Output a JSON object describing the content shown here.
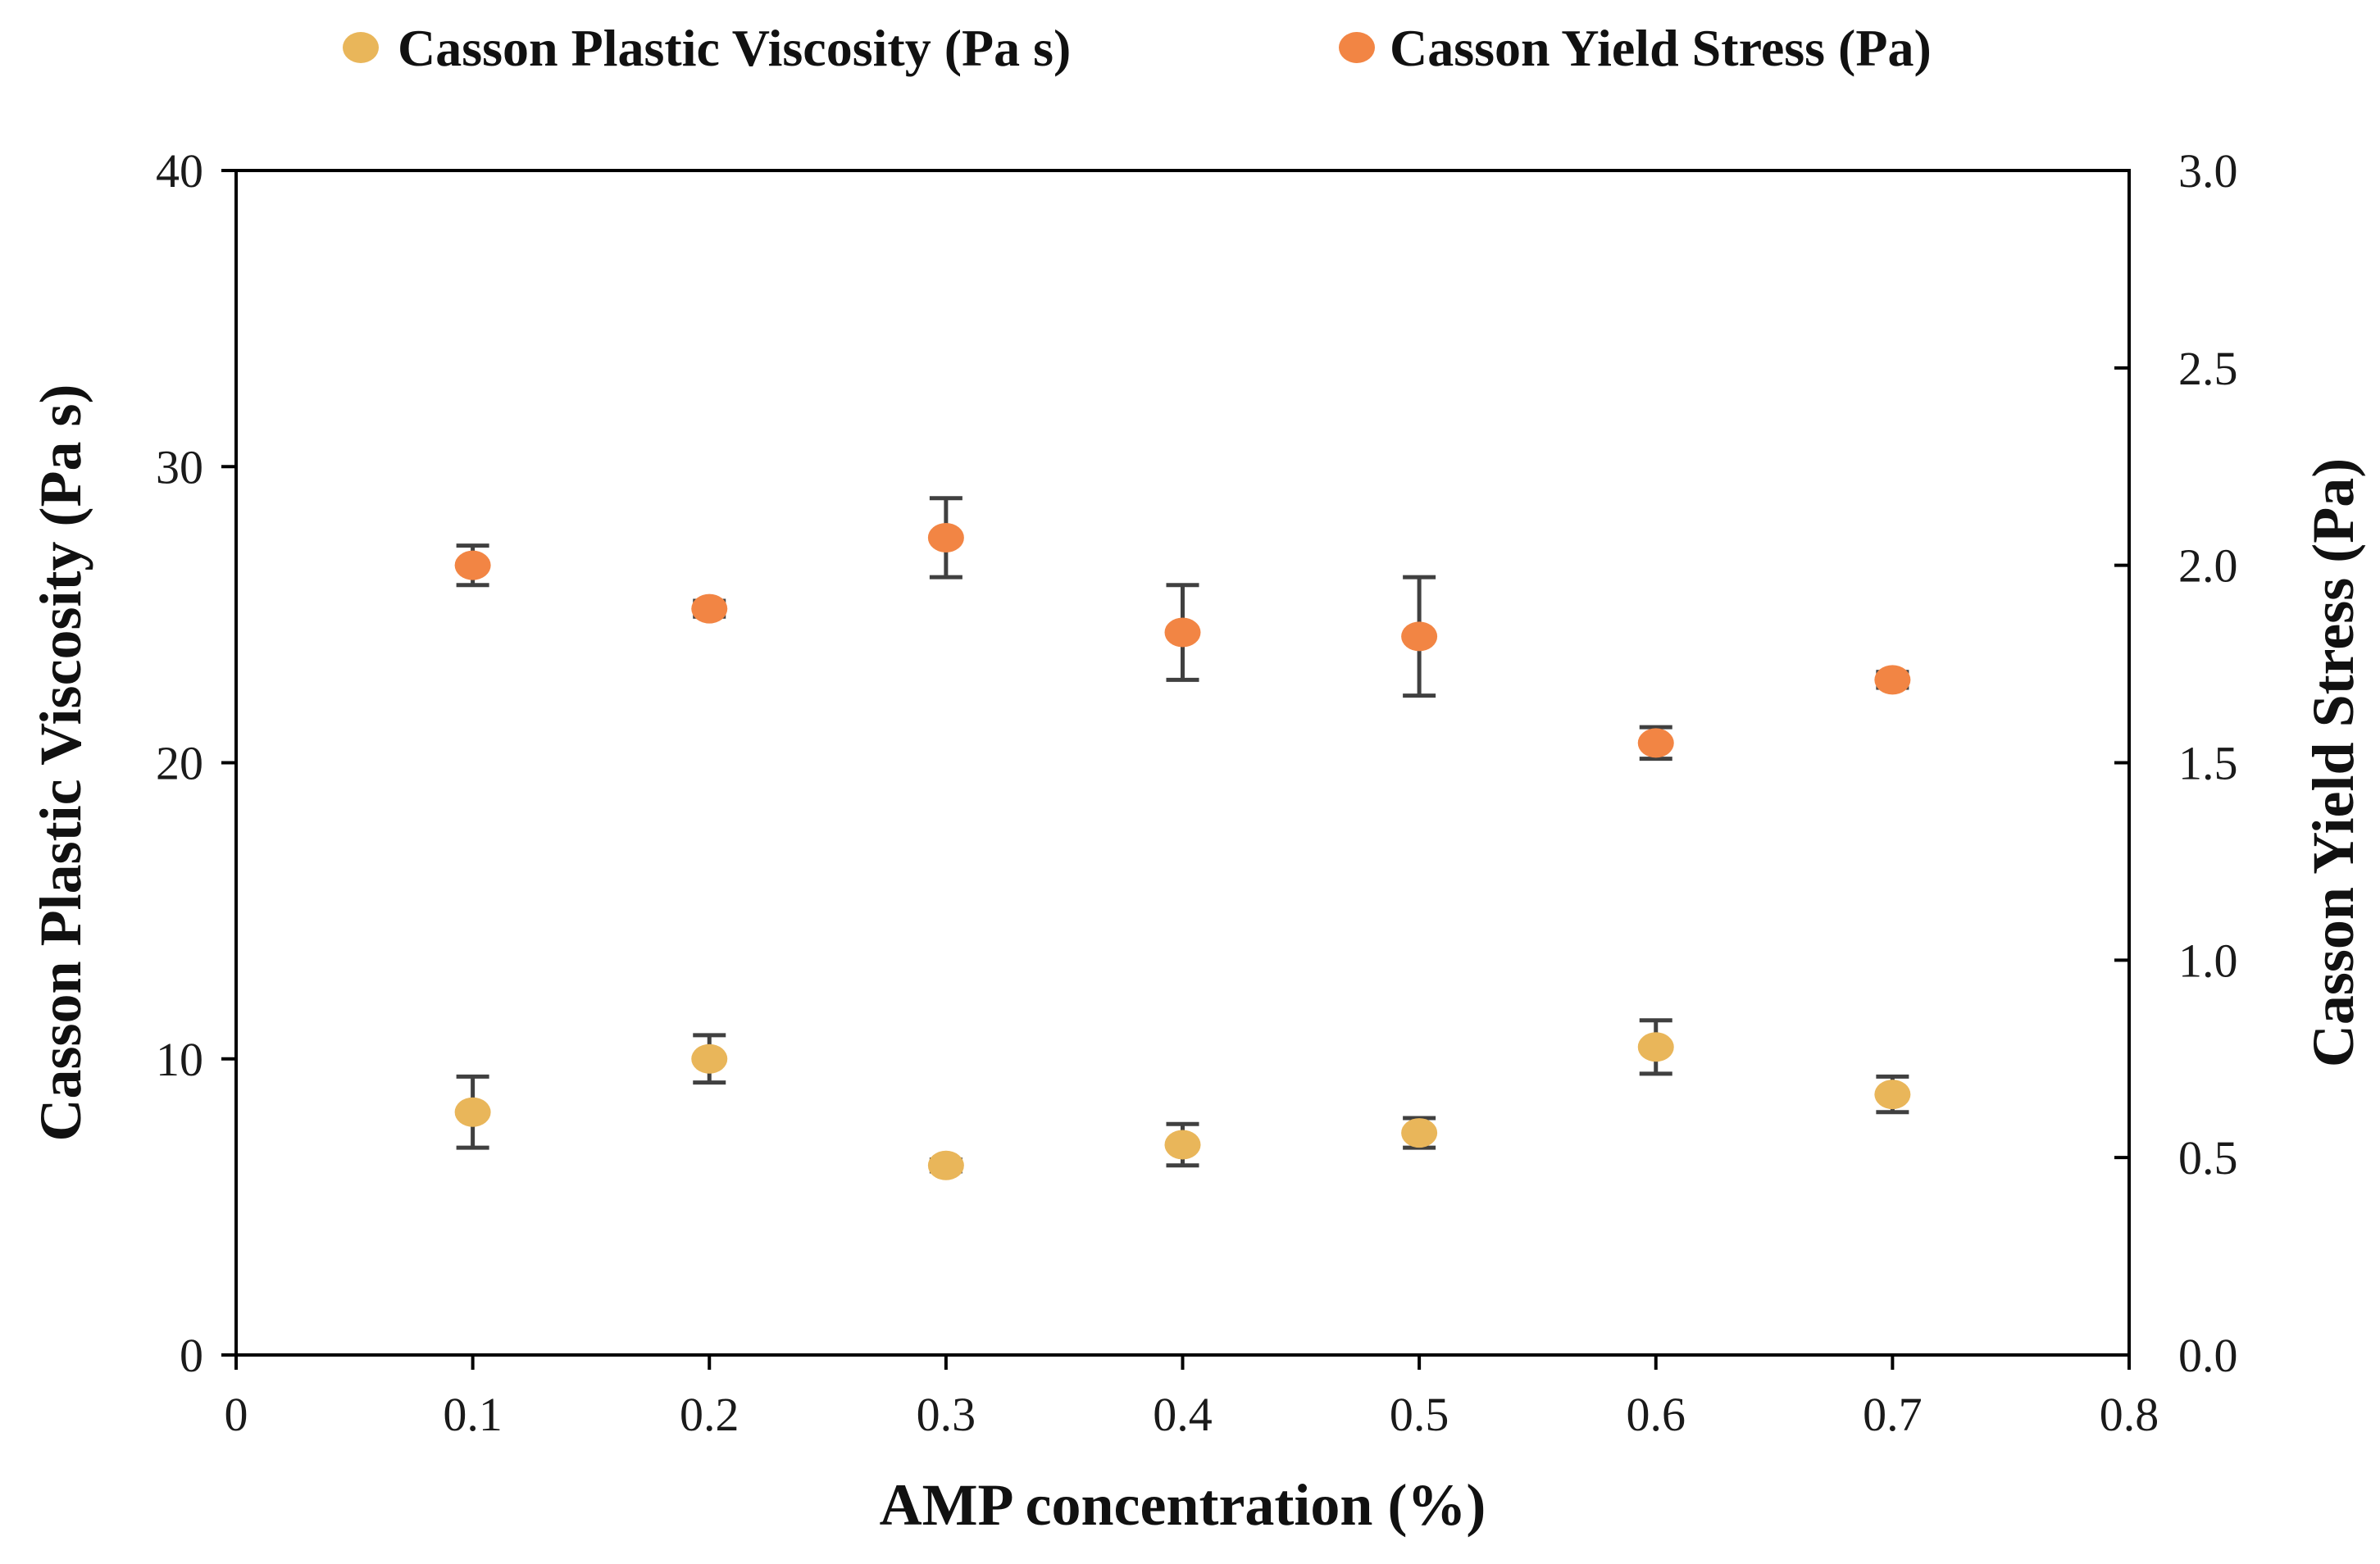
{
  "chart_data": {
    "type": "scatter",
    "grid": false,
    "legend_position": "top",
    "xlabel": "AMP concentration (%)",
    "ylabel": "Casson Plastic Viscosity (Pa s)",
    "y2label": "Casson Yield Stress (Pa)",
    "xlim": [
      0,
      0.8
    ],
    "ylim": [
      0,
      40
    ],
    "y2lim": [
      0,
      3.0
    ],
    "x_ticks": [
      0,
      0.1,
      0.2,
      0.3,
      0.4,
      0.5,
      0.6,
      0.7,
      0.8
    ],
    "x_tick_labels": [
      "0",
      "0.1",
      "0.2",
      "0.3",
      "0.4",
      "0.5",
      "0.6",
      "0.7",
      "0.8"
    ],
    "y_ticks": [
      0,
      10,
      20,
      30,
      40
    ],
    "y_tick_labels": [
      "0",
      "10",
      "20",
      "30",
      "40"
    ],
    "y2_ticks": [
      0,
      0.5,
      1.0,
      1.5,
      2.0,
      2.5,
      3.0
    ],
    "y2_tick_labels": [
      "0.0",
      "0.5",
      "1.0",
      "1.5",
      "2.0",
      "2.5",
      "3.0"
    ],
    "series": [
      {
        "name": "Casson Plastic Viscosity (Pa s)",
        "axis": "left",
        "color": "#E9B65A",
        "x": [
          0.1,
          0.2,
          0.3,
          0.4,
          0.5,
          0.6,
          0.7
        ],
        "y": [
          8.2,
          10.0,
          6.4,
          7.1,
          7.5,
          10.4,
          8.8
        ],
        "error": [
          1.2,
          0.8,
          0.2,
          0.7,
          0.5,
          0.9,
          0.6
        ]
      },
      {
        "name": "Casson Yield Stress (Pa)",
        "axis": "right",
        "color": "#F28544",
        "x": [
          0.1,
          0.2,
          0.3,
          0.4,
          0.5,
          0.6,
          0.7
        ],
        "y": [
          2.0,
          1.89,
          2.07,
          1.83,
          1.82,
          1.55,
          1.71
        ],
        "error": [
          0.05,
          0.02,
          0.1,
          0.12,
          0.15,
          0.04,
          0.02
        ]
      }
    ]
  }
}
